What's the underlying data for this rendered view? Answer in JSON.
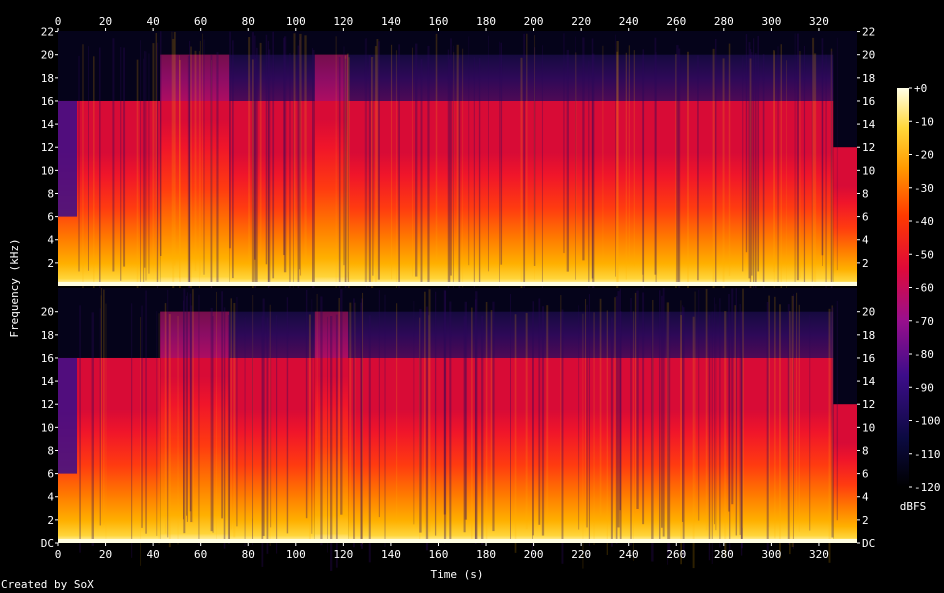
{
  "credit": "Created by SoX",
  "chart_data": {
    "type": "heatmap",
    "title": "",
    "xlabel": "Time (s)",
    "ylabel": "Frequency (kHz)",
    "xlim": [
      0,
      336
    ],
    "ylim": [
      0,
      22.05
    ],
    "x_ticks": [
      0,
      20,
      40,
      60,
      80,
      100,
      120,
      140,
      160,
      180,
      200,
      220,
      240,
      260,
      280,
      300,
      320
    ],
    "channel_top_y_ticks": [
      "2",
      "4",
      "6",
      "8",
      "10",
      "12",
      "14",
      "16",
      "18",
      "20",
      "22"
    ],
    "channel_bottom_y_ticks": [
      "DC",
      "2",
      "4",
      "6",
      "8",
      "10",
      "12",
      "14",
      "16",
      "18",
      "20"
    ],
    "channels": 2,
    "lowpass_cutoff_khz_intro": 16,
    "lowpass_cutoff_khz_main": 20,
    "colorbar": {
      "label": "dBFS",
      "ticks": [
        "+0",
        "-10",
        "-20",
        "-30",
        "-40",
        "-50",
        "-60",
        "-70",
        "-80",
        "-90",
        "-100",
        "-110",
        "-120"
      ],
      "range": [
        -120,
        0
      ]
    }
  }
}
